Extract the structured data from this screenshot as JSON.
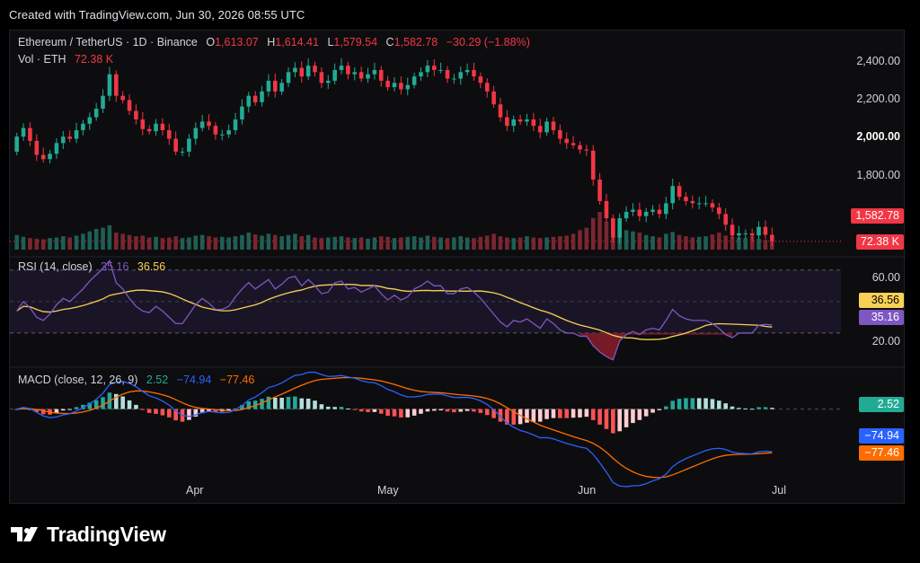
{
  "caption": "Created with TradingView.com, Jun 30, 2026 08:55 UTC",
  "brand": {
    "name": "TradingView",
    "icon": "tradingview-logo-icon"
  },
  "legend": {
    "symbol": "Ethereum / TetherUS · 1D · Binance",
    "open_label": "O",
    "open": "1,613.07",
    "high_label": "H",
    "high": "1,614.41",
    "low_label": "L",
    "low": "1,579.54",
    "close_label": "C",
    "close": "1,582.78",
    "change": "−30.29 (−1.88%)",
    "vol_label": "Vol · ETH",
    "vol": "72.38 K"
  },
  "rsi_legend": {
    "label": "RSI (14, close)",
    "rsi": "35.16",
    "ma": "36.56"
  },
  "macd_legend": {
    "label": "MACD (close, 12, 26, 9)",
    "hist": "2.52",
    "macd": "−74.94",
    "signal": "−77.46"
  },
  "price_axis": [
    "2,400.00",
    "2,200.00",
    "2,000.00",
    "1,800.00"
  ],
  "rsi_axis": [
    "60.00",
    "20.00"
  ],
  "badges": {
    "price": "1,582.78",
    "volume": "72.38 K",
    "rsi_ma": "36.56",
    "rsi": "35.16",
    "macd_hist": "2.52",
    "macd": "−74.94",
    "signal": "−77.46"
  },
  "months": [
    "Apr",
    "May",
    "Jun",
    "Jul"
  ],
  "colors": {
    "up": "#22ab94",
    "down": "#f23645",
    "rsi": "#7e57c2",
    "rsi_ma": "#f7d155",
    "macd": "#2962ff",
    "signal": "#ff6d00",
    "background": "#0d0d0f"
  },
  "chart_data": {
    "type": "candlestick",
    "price_ylim": [
      1540,
      2480
    ],
    "rsi_ylim": [
      10,
      75
    ],
    "macd_ylim": [
      -135,
      75
    ],
    "closes": [
      2070,
      2110,
      2050,
      1985,
      1965,
      1990,
      2040,
      2070,
      2060,
      2100,
      2130,
      2160,
      2200,
      2260,
      2360,
      2260,
      2240,
      2190,
      2150,
      2105,
      2095,
      2130,
      2100,
      2060,
      2000,
      2000,
      2060,
      2110,
      2140,
      2120,
      2080,
      2080,
      2100,
      2150,
      2210,
      2260,
      2230,
      2280,
      2330,
      2280,
      2320,
      2370,
      2390,
      2350,
      2400,
      2370,
      2320,
      2330,
      2380,
      2400,
      2360,
      2370,
      2340,
      2360,
      2380,
      2330,
      2300,
      2320,
      2290,
      2310,
      2350,
      2370,
      2400,
      2380,
      2380,
      2340,
      2340,
      2370,
      2380,
      2350,
      2320,
      2280,
      2220,
      2160,
      2120,
      2150,
      2140,
      2150,
      2120,
      2090,
      2140,
      2100,
      2060,
      2040,
      2030,
      2010,
      2005,
      1870,
      1770,
      1690,
      1600,
      1690,
      1720,
      1730,
      1700,
      1720,
      1730,
      1710,
      1760,
      1840,
      1790,
      1770,
      1760,
      1760,
      1760,
      1740,
      1710,
      1660,
      1610,
      1620,
      1620,
      1610,
      1650,
      1613,
      1583
    ],
    "opens": [
      2000,
      2070,
      2110,
      2050,
      1985,
      1965,
      1990,
      2040,
      2070,
      2060,
      2100,
      2130,
      2160,
      2200,
      2260,
      2360,
      2260,
      2240,
      2190,
      2150,
      2105,
      2095,
      2130,
      2100,
      2060,
      2000,
      2000,
      2060,
      2110,
      2140,
      2120,
      2080,
      2080,
      2100,
      2150,
      2210,
      2260,
      2230,
      2280,
      2330,
      2280,
      2320,
      2370,
      2390,
      2350,
      2400,
      2370,
      2320,
      2330,
      2380,
      2400,
      2360,
      2370,
      2340,
      2360,
      2380,
      2330,
      2300,
      2320,
      2290,
      2310,
      2350,
      2370,
      2400,
      2380,
      2380,
      2340,
      2340,
      2370,
      2380,
      2350,
      2320,
      2280,
      2220,
      2160,
      2120,
      2150,
      2140,
      2150,
      2120,
      2090,
      2140,
      2100,
      2060,
      2040,
      2030,
      2010,
      2005,
      1870,
      1770,
      1690,
      1600,
      1690,
      1720,
      1730,
      1700,
      1720,
      1730,
      1710,
      1760,
      1840,
      1790,
      1770,
      1760,
      1760,
      1760,
      1740,
      1710,
      1660,
      1610,
      1620,
      1620,
      1610,
      1650,
      1613
    ],
    "volumes": [
      120,
      105,
      95,
      90,
      85,
      95,
      100,
      110,
      100,
      115,
      130,
      150,
      170,
      180,
      200,
      140,
      130,
      120,
      110,
      115,
      100,
      105,
      95,
      100,
      110,
      95,
      100,
      115,
      120,
      110,
      100,
      105,
      100,
      110,
      120,
      140,
      125,
      115,
      130,
      120,
      110,
      120,
      130,
      110,
      120,
      100,
      95,
      100,
      105,
      110,
      100,
      95,
      100,
      90,
      100,
      110,
      105,
      95,
      100,
      105,
      110,
      100,
      115,
      105,
      100,
      95,
      100,
      110,
      100,
      95,
      105,
      115,
      130,
      110,
      100,
      95,
      100,
      110,
      100,
      95,
      100,
      105,
      110,
      115,
      130,
      160,
      180,
      260,
      310,
      230,
      190,
      200,
      160,
      150,
      140,
      120,
      110,
      100,
      130,
      145,
      120,
      110,
      100,
      105,
      110,
      125,
      140,
      115,
      105,
      100,
      95,
      110,
      90,
      80,
      72
    ],
    "rsi": [
      44,
      50,
      46,
      40,
      38,
      42,
      48,
      52,
      50,
      54,
      58,
      63,
      67,
      71,
      76,
      62,
      58,
      52,
      47,
      44,
      43,
      47,
      44,
      40,
      36,
      36,
      42,
      48,
      52,
      49,
      45,
      45,
      47,
      53,
      58,
      62,
      58,
      61,
      64,
      58,
      61,
      65,
      66,
      60,
      64,
      60,
      55,
      56,
      62,
      63,
      58,
      59,
      56,
      58,
      60,
      55,
      51,
      54,
      51,
      53,
      58,
      60,
      63,
      60,
      60,
      55,
      55,
      58,
      59,
      56,
      52,
      47,
      42,
      37,
      34,
      38,
      37,
      39,
      36,
      33,
      39,
      36,
      32,
      30,
      30,
      28,
      28,
      22,
      18,
      15,
      13,
      25,
      29,
      31,
      29,
      32,
      33,
      32,
      38,
      45,
      41,
      39,
      38,
      38,
      38,
      36,
      33,
      29,
      27,
      30,
      30,
      30,
      35,
      35.5,
      35.16
    ],
    "months": [
      "Apr",
      "May",
      "Jun",
      "Jul"
    ]
  }
}
